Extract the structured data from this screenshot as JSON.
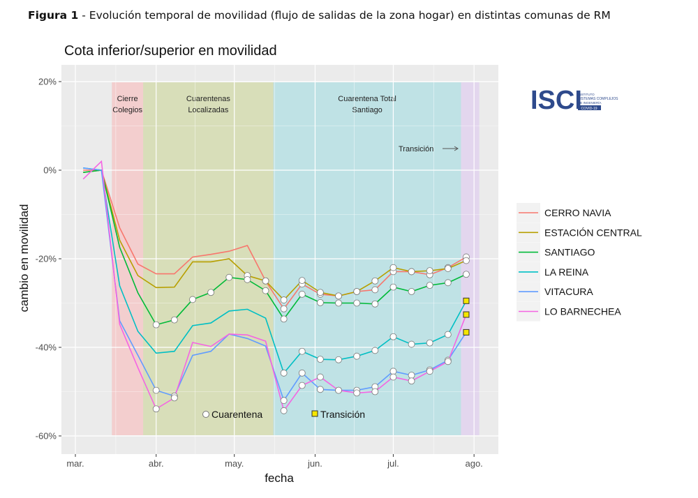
{
  "figure_caption": {
    "bold": "Figura 1",
    "text": " - Evolución temporal de movilidad (flujo de salidas de la zona hogar) en distintas comunas de RM"
  },
  "logo": {
    "text": "ISCI",
    "subtext": [
      "INSTITUTO",
      "SISTEMAS COMPLEJOS",
      "DE INGENIERÍA"
    ],
    "badge": "COVID-19",
    "color": "#2e4a8c"
  },
  "chart_data": {
    "type": "line",
    "title": "Cota inferior/superior en movilidad",
    "xlabel": "fecha",
    "ylabel": "cambio en movilidad",
    "ylim": [
      -60,
      20
    ],
    "yticks": [
      {
        "v": 20,
        "label": "20%"
      },
      {
        "v": 0,
        "label": "0%"
      },
      {
        "v": -20,
        "label": "-20%"
      },
      {
        "v": -40,
        "label": "-40%"
      },
      {
        "v": -60,
        "label": "-60%"
      }
    ],
    "xticks": [
      {
        "date": "03-01",
        "label": "mar."
      },
      {
        "date": "04-01",
        "label": "abr."
      },
      {
        "date": "05-01",
        "label": "may."
      },
      {
        "date": "06-01",
        "label": "jun."
      },
      {
        "date": "07-01",
        "label": "jul."
      },
      {
        "date": "08-01",
        "label": "ago."
      }
    ],
    "grid": true,
    "legend_position": "right",
    "x": [
      "03-04",
      "03-11",
      "03-18",
      "03-25",
      "04-01",
      "04-08",
      "04-15",
      "04-22",
      "04-29",
      "05-06",
      "05-13",
      "05-20",
      "05-27",
      "06-03",
      "06-10",
      "06-17",
      "06-24",
      "07-01",
      "07-08",
      "07-15",
      "07-22",
      "07-29"
    ],
    "series": [
      {
        "name": "CERRO NAVIA",
        "color": "#f8766d",
        "values": [
          0,
          0,
          -13,
          -21.2,
          -23.4,
          -23.4,
          -19.6,
          -19,
          -18.3,
          -17,
          -25,
          -31.3,
          -25.7,
          -28,
          -28.4,
          -27.4,
          -27,
          -22.9,
          -22.9,
          -23.6,
          -22,
          -19.6
        ],
        "markers": [
          "",
          "",
          "",
          "",
          "",
          "",
          "",
          "",
          "",
          "",
          "c",
          "c",
          "c",
          "c",
          "c",
          "c",
          "c",
          "c",
          "c",
          "c",
          "c",
          "c"
        ]
      },
      {
        "name": "ESTACIÓN CENTRAL",
        "color": "#b79f00",
        "values": [
          -0.5,
          0,
          -15.8,
          -23.8,
          -26.5,
          -26.4,
          -20.7,
          -20.7,
          -20,
          -23.8,
          -25,
          -29.3,
          -24.9,
          -27.6,
          -28.4,
          -27.4,
          -25,
          -22,
          -22.9,
          -22.7,
          -22.2,
          -20.4
        ],
        "markers": [
          "",
          "",
          "",
          "",
          "",
          "",
          "",
          "",
          "",
          "c",
          "c",
          "c",
          "c",
          "c",
          "c",
          "c",
          "c",
          "c",
          "c",
          "c",
          "c",
          "c"
        ]
      },
      {
        "name": "SANTIAGO",
        "color": "#00ba38",
        "values": [
          -0.5,
          0,
          -17.4,
          -27.7,
          -34.9,
          -33.8,
          -29.2,
          -27.6,
          -24.2,
          -24.7,
          -27.2,
          -33.6,
          -28,
          -29.9,
          -30,
          -30,
          -30.2,
          -26.4,
          -27.4,
          -26,
          -25.4,
          -23.5
        ],
        "markers": [
          "",
          "",
          "",
          "",
          "c",
          "c",
          "c",
          "c",
          "c",
          "c",
          "c",
          "c",
          "c",
          "c",
          "c",
          "c",
          "c",
          "c",
          "c",
          "c",
          "c",
          "c"
        ]
      },
      {
        "name": "LA REINA",
        "color": "#00bfc4",
        "values": [
          0.5,
          0,
          -26.1,
          -36.4,
          -41.3,
          -40.9,
          -35.1,
          -34.5,
          -31.8,
          -31.4,
          -33.4,
          -45.8,
          -40.9,
          -42.7,
          -42.8,
          -42,
          -40.7,
          -37.6,
          -39.3,
          -39,
          -37.1,
          -29.5
        ],
        "markers": [
          "",
          "",
          "",
          "",
          "",
          "",
          "",
          "",
          "",
          "",
          "",
          "c",
          "c",
          "c",
          "c",
          "c",
          "c",
          "c",
          "c",
          "c",
          "c",
          "s"
        ]
      },
      {
        "name": "VITACURA",
        "color": "#619cff",
        "values": [
          0.5,
          0,
          -34,
          -41.8,
          -49.7,
          -51,
          -41.8,
          -40.9,
          -37,
          -38,
          -39.7,
          -52,
          -45.8,
          -49.5,
          -49.7,
          -49.7,
          -48.9,
          -45.4,
          -46.3,
          -45.1,
          -42.9,
          -36.6
        ],
        "markers": [
          "",
          "",
          "",
          "",
          "c",
          "c",
          "",
          "",
          "",
          "",
          "",
          "c",
          "c",
          "c",
          "c",
          "c",
          "c",
          "c",
          "c",
          "c",
          "c",
          "s"
        ]
      },
      {
        "name": "LO BARNECHEA",
        "color": "#f564e3",
        "values": [
          -2,
          2,
          -34.8,
          -44.6,
          -53.9,
          -51.4,
          -38.9,
          -39.8,
          -37,
          -37.2,
          -38.6,
          -54.3,
          -48.6,
          -46.7,
          -49.7,
          -50.3,
          -50,
          -46.7,
          -47.6,
          -45.4,
          -43.2,
          -32.6
        ],
        "markers": [
          "",
          "",
          "",
          "",
          "c",
          "c",
          "",
          "",
          "",
          "",
          "",
          "c",
          "c",
          "c",
          "c",
          "c",
          "c",
          "c",
          "c",
          "c",
          "c",
          "s"
        ]
      }
    ],
    "phases": [
      {
        "label": [
          "Cierre",
          "Colegios"
        ],
        "start": "03-15",
        "end": "03-27",
        "color": "#f4c9c9"
      },
      {
        "label": [
          "Cuarentenas",
          "Localizadas"
        ],
        "start": "03-27",
        "end": "05-16",
        "color": "#d5dcb0"
      },
      {
        "label": [
          "Cuarentena Total",
          "Santiago"
        ],
        "start": "05-16",
        "end": "07-27",
        "color": "#b7e0e4"
      },
      {
        "label": [],
        "start": "07-27",
        "end": "08-03",
        "color": "#e2d2ee"
      }
    ],
    "transition_note": "Transición",
    "marker_legend": {
      "circle": "Cuarentena",
      "square": "Transición"
    }
  }
}
